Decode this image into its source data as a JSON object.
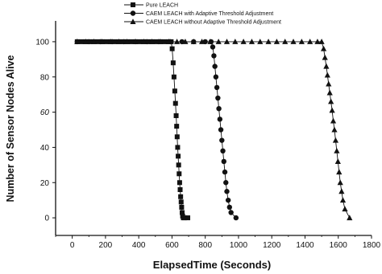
{
  "chart_data": {
    "type": "line",
    "title": "",
    "xlabel": "ElapsedTime (Seconds)",
    "ylabel": "Number of Sensor Nodes Alive",
    "xlim": [
      -100,
      1800
    ],
    "ylim": [
      -10,
      110
    ],
    "xticks": [
      0,
      200,
      400,
      600,
      800,
      1000,
      1200,
      1400,
      1600,
      1800
    ],
    "yticks": [
      0,
      20,
      40,
      60,
      80,
      100
    ],
    "yticks_labels": [
      "0",
      "20",
      "40",
      "60",
      "80",
      "100"
    ],
    "grid": false,
    "legend_position": "top-left",
    "series": [
      {
        "name": "Pure LEACH",
        "marker": "square",
        "color": "#111111",
        "x": [
          30,
          55,
          80,
          105,
          130,
          155,
          180,
          205,
          230,
          255,
          280,
          305,
          330,
          355,
          380,
          405,
          430,
          455,
          480,
          505,
          530,
          555,
          580,
          595,
          601,
          607,
          612,
          617,
          621,
          625,
          628,
          631,
          634,
          637,
          640,
          643,
          646,
          649,
          652,
          655,
          658,
          661,
          664,
          668,
          675,
          695
        ],
        "y": [
          100,
          100,
          100,
          100,
          100,
          100,
          100,
          100,
          100,
          100,
          100,
          100,
          100,
          100,
          100,
          100,
          100,
          100,
          100,
          100,
          100,
          100,
          100,
          100,
          96,
          88,
          80,
          72,
          65,
          58,
          52,
          46,
          40,
          35,
          30,
          25,
          20,
          16,
          12,
          9,
          6,
          3,
          1,
          0,
          0,
          0
        ]
      },
      {
        "name": "CAEM LEACH with Adaptive Threshold Adjustment",
        "marker": "circle",
        "color": "#111111",
        "x": [
          30,
          100,
          170,
          240,
          310,
          380,
          450,
          520,
          590,
          660,
          730,
          800,
          835,
          845,
          852,
          858,
          864,
          870,
          876,
          882,
          888,
          894,
          900,
          906,
          912,
          918,
          924,
          930,
          938,
          946,
          955,
          985
        ],
        "y": [
          100,
          100,
          100,
          100,
          100,
          100,
          100,
          100,
          100,
          100,
          100,
          100,
          100,
          97,
          92,
          86,
          80,
          74,
          68,
          62,
          56,
          50,
          44,
          38,
          32,
          26,
          20,
          15,
          10,
          6,
          3,
          0
        ]
      },
      {
        "name": "CAEM LEACH without Adaptive Threshold Adjustment",
        "marker": "triangle",
        "color": "#111111",
        "x": [
          30,
          80,
          130,
          180,
          230,
          280,
          330,
          380,
          430,
          480,
          530,
          580,
          630,
          680,
          730,
          780,
          830,
          880,
          930,
          980,
          1030,
          1080,
          1130,
          1180,
          1230,
          1280,
          1330,
          1380,
          1430,
          1475,
          1500,
          1512,
          1520,
          1528,
          1535,
          1542,
          1549,
          1556,
          1563,
          1570,
          1577,
          1584,
          1591,
          1598,
          1605,
          1612,
          1620,
          1628,
          1640,
          1668
        ],
        "y": [
          100,
          100,
          100,
          100,
          100,
          100,
          100,
          100,
          100,
          100,
          100,
          100,
          100,
          100,
          100,
          100,
          100,
          100,
          100,
          100,
          100,
          100,
          100,
          100,
          100,
          100,
          100,
          100,
          100,
          100,
          100,
          96,
          91,
          86,
          81,
          76,
          71,
          66,
          61,
          55,
          50,
          44,
          38,
          32,
          26,
          20,
          15,
          10,
          5,
          0
        ]
      }
    ]
  }
}
